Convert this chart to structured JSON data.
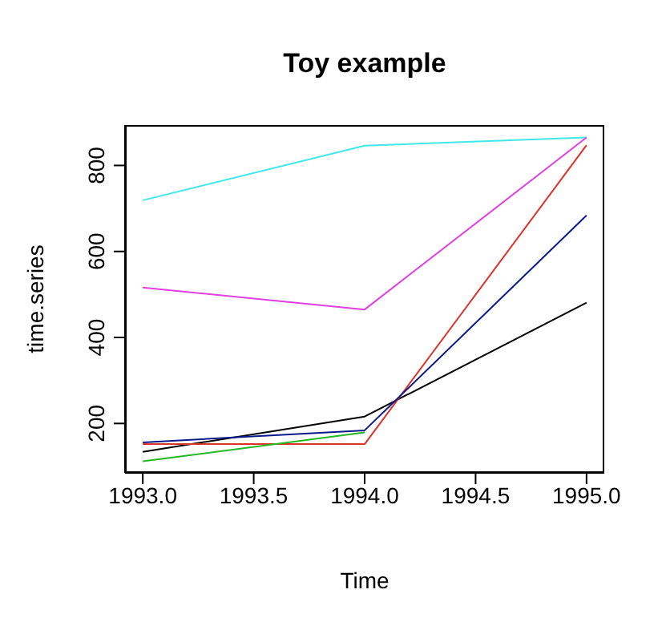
{
  "chart_data": {
    "type": "line",
    "title": "Toy example",
    "xlabel": "Time",
    "ylabel": "time.series",
    "x": [
      1993,
      1994,
      1995
    ],
    "series": [
      {
        "color": "#000000",
        "values": [
          134,
          216,
          481
        ]
      },
      {
        "color": "#e0302a",
        "values": [
          152,
          152,
          847
        ]
      },
      {
        "color": "#22b822",
        "values": [
          112,
          179,
          null
        ]
      },
      {
        "color": "#0a1a8a",
        "values": [
          156,
          184,
          684
        ]
      },
      {
        "color": "#40e8e8",
        "values": [
          719,
          846,
          865
        ]
      },
      {
        "color": "#e040e0",
        "values": [
          516,
          465,
          865
        ]
      }
    ],
    "xlim": [
      1992.92,
      1995.08
    ],
    "xticks": [
      {
        "value": 1993,
        "label": "1993.0"
      },
      {
        "value": 1993.5,
        "label": "1993.5"
      },
      {
        "value": 1994,
        "label": "1994.0"
      },
      {
        "value": 1994.5,
        "label": "1994.5"
      },
      {
        "value": 1995,
        "label": "1995.0"
      }
    ],
    "ylim": [
      85,
      894
    ],
    "yticks": [
      200,
      400,
      600,
      800
    ],
    "grid": false,
    "legend": false,
    "marker": "none",
    "line_style": "solid"
  }
}
